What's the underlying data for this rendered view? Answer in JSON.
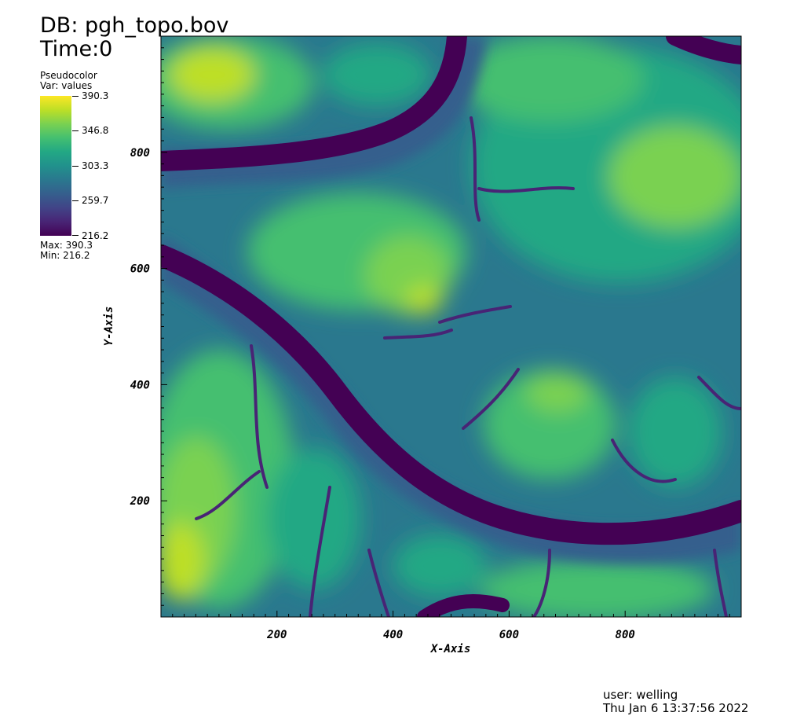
{
  "header": {
    "db": "DB: pgh_topo.bov",
    "time": "Time:0"
  },
  "legend": {
    "plot_type": "Pseudocolor",
    "variable": "Var: values",
    "labels": [
      "390.3",
      "346.8",
      "303.3",
      "259.7",
      "216.2"
    ],
    "max_text": "Max:  390.3",
    "min_text": "Min:  216.2",
    "colormap": "viridis"
  },
  "footer": {
    "user": "user: welling",
    "date": "Thu Jan  6 13:37:56 2022"
  },
  "chart_data": {
    "type": "heatmap",
    "xlabel": "X-Axis",
    "ylabel": "Y-Axis",
    "xlim": [
      0,
      1000
    ],
    "ylim": [
      0,
      1000
    ],
    "xticks": [
      200,
      400,
      600,
      800
    ],
    "yticks": [
      200,
      400,
      600,
      800
    ],
    "value_range": [
      216.2,
      390.3
    ],
    "colors": [
      "#440154",
      "#482475",
      "#414487",
      "#355f8d",
      "#2a788e",
      "#21918c",
      "#22a884",
      "#44bf70",
      "#7ad151",
      "#bddf26",
      "#fde725"
    ]
  }
}
